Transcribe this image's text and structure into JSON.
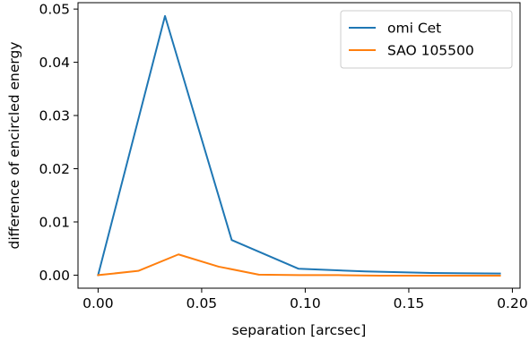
{
  "chart_data": {
    "type": "line",
    "xlabel": "separation [arcsec]",
    "ylabel": "difference of encircled energy",
    "xlim": [
      -0.0097,
      0.2037
    ],
    "ylim": [
      -0.00245,
      0.0512
    ],
    "xticks": [
      0.0,
      0.05,
      0.1,
      0.15,
      0.2
    ],
    "xtick_labels": [
      "0.00",
      "0.05",
      "0.10",
      "0.15",
      "0.20"
    ],
    "yticks": [
      0.0,
      0.01,
      0.02,
      0.03,
      0.04,
      0.05
    ],
    "ytick_labels": [
      "0.00",
      "0.01",
      "0.02",
      "0.03",
      "0.04",
      "0.05"
    ],
    "grid": false,
    "legend_position": "top-right",
    "series": [
      {
        "name": "omi Cet",
        "color": "#1f77b4",
        "x": [
          0.0,
          0.0323,
          0.0645,
          0.0968,
          0.129,
          0.161,
          0.194
        ],
        "y": [
          0.0,
          0.0487,
          0.0066,
          0.0012,
          0.0007,
          0.0004,
          0.0003
        ]
      },
      {
        "name": "SAO 105500",
        "color": "#ff7f0e",
        "x": [
          0.0,
          0.0194,
          0.0388,
          0.0582,
          0.0776,
          0.097,
          0.116,
          0.136,
          0.155,
          0.175,
          0.194
        ],
        "y": [
          0.0,
          0.0008,
          0.0039,
          0.0016,
          0.0001,
          0.0,
          0.0,
          -0.0001,
          -0.0001,
          -0.0001,
          -0.0001
        ]
      }
    ]
  }
}
